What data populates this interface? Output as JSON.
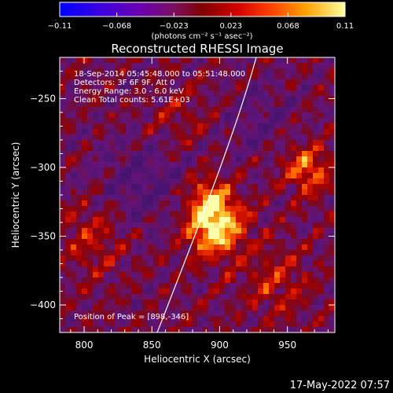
{
  "colorbar": {
    "ticks": [
      "-0.11",
      "-0.068",
      "-0.023",
      "0.023",
      "0.068",
      "0.11"
    ],
    "units_label": "(photons cm⁻² s⁻¹ asec⁻²)"
  },
  "title": "Reconstructed RHESSI Image",
  "info": {
    "line1": "18-Sep-2014 05:45:48.000 to 05:51:48.000",
    "line2": "Detectors: 3F 6F 9F, Att 0",
    "line3": "Energy Range: 3.0 - 6.0 keV",
    "line4": "Clean    Total counts: 5.61E+03"
  },
  "peak_label": "Position of Peak = [898,-346]",
  "axes": {
    "xlabel": "Heliocentric X (arcsec)",
    "ylabel": "Heliocentric Y (arcsec)",
    "xticks": [
      {
        "value": 800,
        "label": "800"
      },
      {
        "value": 850,
        "label": "850"
      },
      {
        "value": 900,
        "label": "900"
      },
      {
        "value": 950,
        "label": "950"
      }
    ],
    "yticks": [
      {
        "value": -250,
        "label": "−250"
      },
      {
        "value": -300,
        "label": "−300"
      },
      {
        "value": -350,
        "label": "−350"
      },
      {
        "value": -400,
        "label": "−400"
      }
    ],
    "xrange": [
      782,
      985
    ],
    "yrange": [
      -420,
      -220
    ]
  },
  "footer_date": "17-May-2022 07:57",
  "colors": {
    "background": "#000000",
    "text": "#ffffff",
    "limb": "#ffffff"
  }
}
